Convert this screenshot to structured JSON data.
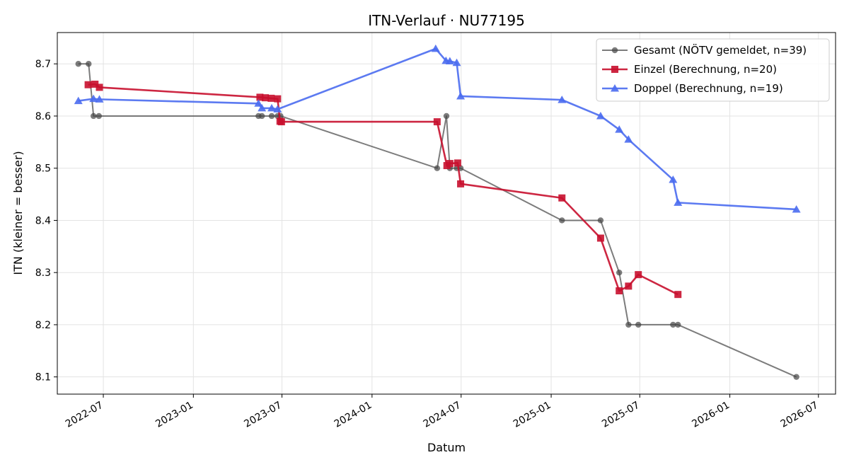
{
  "chart_data": {
    "type": "line",
    "title": "ITN-Verlauf · NU77195",
    "xlabel": "Datum",
    "ylabel": "ITN  (kleiner = besser)",
    "x_axis_type": "date",
    "xlim": [
      "2022-03-29",
      "2026-08-05"
    ],
    "ylim": [
      8.067,
      8.76
    ],
    "x_ticks": [
      "2022-07-01",
      "2023-01-01",
      "2023-07-01",
      "2024-01-01",
      "2024-07-01",
      "2025-01-01",
      "2025-07-01",
      "2026-01-01",
      "2026-07-01"
    ],
    "x_tick_labels": [
      "2022-07",
      "2023-01",
      "2023-07",
      "2024-01",
      "2024-07",
      "2025-01",
      "2025-07",
      "2026-01",
      "2026-07"
    ],
    "y_ticks": [
      8.1,
      8.2,
      8.3,
      8.4,
      8.5,
      8.6,
      8.7
    ],
    "y_tick_labels": [
      "8.1",
      "8.2",
      "8.3",
      "8.4",
      "8.5",
      "8.6",
      "8.7"
    ],
    "grid": true,
    "legend_position": "top-right",
    "series": [
      {
        "name": "Gesamt (NÖTV gemeldet, n=39)",
        "color": "#444444",
        "marker": "circle",
        "points": [
          [
            "2022-05-11",
            8.7
          ],
          [
            "2022-06-01",
            8.7
          ],
          [
            "2022-06-11",
            8.6
          ],
          [
            "2022-06-22",
            8.6
          ],
          [
            "2023-05-14",
            8.6
          ],
          [
            "2023-05-21",
            8.6
          ],
          [
            "2023-06-10",
            8.6
          ],
          [
            "2023-06-22",
            8.6
          ],
          [
            "2023-06-28",
            8.6
          ],
          [
            "2024-05-13",
            8.5
          ],
          [
            "2024-06-01",
            8.6
          ],
          [
            "2024-06-08",
            8.5
          ],
          [
            "2024-06-22",
            8.5
          ],
          [
            "2024-06-30",
            8.5
          ],
          [
            "2025-01-23",
            8.4
          ],
          [
            "2025-04-12",
            8.4
          ],
          [
            "2025-05-20",
            8.3
          ],
          [
            "2025-06-08",
            8.2
          ],
          [
            "2025-06-28",
            8.2
          ],
          [
            "2025-09-07",
            8.2
          ],
          [
            "2025-09-17",
            8.2
          ],
          [
            "2026-05-17",
            8.1
          ]
        ]
      },
      {
        "name": "Einzel (Berechnung, n=20)",
        "color": "#c8102e",
        "marker": "square",
        "points": [
          [
            "2022-05-31",
            8.66
          ],
          [
            "2022-06-14",
            8.661
          ],
          [
            "2022-06-23",
            8.655
          ],
          [
            "2023-05-17",
            8.636
          ],
          [
            "2023-05-28",
            8.635
          ],
          [
            "2023-06-09",
            8.634
          ],
          [
            "2023-06-22",
            8.633
          ],
          [
            "2023-06-27",
            8.59
          ],
          [
            "2023-06-30",
            8.589
          ],
          [
            "2024-05-13",
            8.589
          ],
          [
            "2024-06-02",
            8.505
          ],
          [
            "2024-06-08",
            8.509
          ],
          [
            "2024-06-24",
            8.51
          ],
          [
            "2024-06-30",
            8.47
          ],
          [
            "2025-01-23",
            8.443
          ],
          [
            "2025-04-12",
            8.366
          ],
          [
            "2025-05-20",
            8.265
          ],
          [
            "2025-06-08",
            8.274
          ],
          [
            "2025-06-28",
            8.296
          ],
          [
            "2025-09-17",
            8.258
          ]
        ]
      },
      {
        "name": "Doppel (Berechnung, n=19)",
        "color": "#4a6cf0",
        "marker": "triangle",
        "points": [
          [
            "2022-05-11",
            8.629
          ],
          [
            "2022-06-11",
            8.633
          ],
          [
            "2022-06-23",
            8.632
          ],
          [
            "2023-05-14",
            8.624
          ],
          [
            "2023-05-21",
            8.615
          ],
          [
            "2023-06-10",
            8.615
          ],
          [
            "2023-06-22",
            8.613
          ],
          [
            "2024-05-10",
            8.729
          ],
          [
            "2024-05-31",
            8.706
          ],
          [
            "2024-06-08",
            8.705
          ],
          [
            "2024-06-22",
            8.702
          ],
          [
            "2024-06-30",
            8.638
          ],
          [
            "2025-01-23",
            8.631
          ],
          [
            "2025-04-12",
            8.6
          ],
          [
            "2025-05-20",
            8.574
          ],
          [
            "2025-06-08",
            8.555
          ],
          [
            "2025-09-07",
            8.478
          ],
          [
            "2025-09-17",
            8.434
          ],
          [
            "2026-05-17",
            8.421
          ]
        ]
      }
    ]
  }
}
